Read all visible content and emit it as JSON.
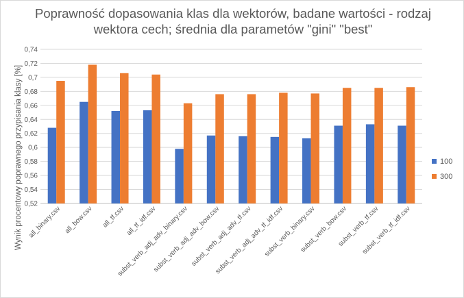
{
  "chart_data": {
    "type": "bar",
    "title_lines": [
      "Poprawność dopasowania klas dla wektorów, badane wartości - rodzaj",
      "wektora cech; średnia dla parametów \"gini\" \"best\""
    ],
    "ylabel": "Wynik procentowy poprawnego przypisania  klasy [%]",
    "xlabel": "",
    "ylim": [
      0.52,
      0.74
    ],
    "yticks": [
      "0,52",
      "0,54",
      "0,56",
      "0,58",
      "0,6",
      "0,62",
      "0,64",
      "0,66",
      "0,68",
      "0,7",
      "0,72",
      "0,74"
    ],
    "grid": true,
    "legend_position": "right",
    "categories": [
      "all_binary.csv",
      "all_bow.csv",
      "all_tf.csv",
      "all_tf_idf.csv",
      "subst_verb_adj_adv_binary.csv",
      "subst_verb_adj_adv_bow.csv",
      "subst_verb_adj_adv_tf.csv",
      "subst_verb_adj_adv_tf_idf.csv",
      "subst_verb_binary.csv",
      "subst_verb_bow.csv",
      "subst_verb_tf.csv",
      "subst_verb_tf_idf.csv"
    ],
    "series": [
      {
        "name": "100",
        "color": "#4472c4",
        "values": [
          0.628,
          0.665,
          0.652,
          0.653,
          0.598,
          0.617,
          0.616,
          0.615,
          0.613,
          0.631,
          0.633,
          0.631
        ]
      },
      {
        "name": "300",
        "color": "#ed7d31",
        "values": [
          0.695,
          0.718,
          0.706,
          0.704,
          0.663,
          0.676,
          0.676,
          0.678,
          0.677,
          0.685,
          0.685,
          0.686
        ]
      }
    ]
  }
}
